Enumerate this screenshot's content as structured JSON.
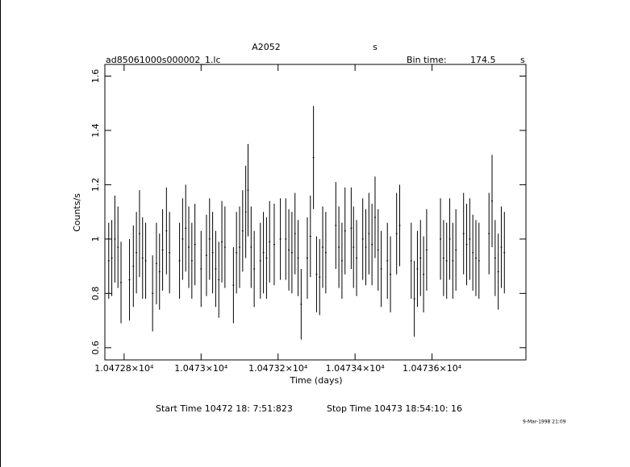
{
  "chart_data": {
    "type": "errorbar",
    "title": "A2052",
    "title_unit": "s",
    "file": "ad85061000s000002_1.lc",
    "bin_label": "Bin time:",
    "bin_time": 174.5,
    "bin_unit": "s",
    "ylabel": "Counts/s",
    "xlabel": "Time (days)",
    "start_time": "Start Time 10472 18: 7:51:823",
    "stop_time": "Stop Time 10473 18:54:10: 16",
    "date": "9-Mar-1998 21:09",
    "color": "#000000",
    "xlim": [
      10472.75,
      10473.844
    ],
    "ylim": [
      0.555,
      1.643
    ],
    "xticks": [
      {
        "value": 10472.8,
        "label": "1.04728×10⁴"
      },
      {
        "value": 10473.0,
        "label": "1.0473×10⁴"
      },
      {
        "value": 10473.2,
        "label": "1.04732×10⁴"
      },
      {
        "value": 10473.4,
        "label": "1.04734×10⁴"
      },
      {
        "value": 10473.6,
        "label": "1.04736×10⁴"
      }
    ],
    "yticks": [
      0.6,
      0.8,
      1,
      1.2,
      1.4,
      1.6
    ],
    "x": [
      10472.76,
      10472.768,
      10472.776,
      10472.784,
      10472.792,
      10472.814,
      10472.824,
      10472.832,
      10472.84,
      10472.848,
      10472.856,
      10472.874,
      10472.884,
      10472.892,
      10472.9,
      10472.91,
      10472.918,
      10472.944,
      10472.952,
      10472.96,
      10472.968,
      10472.976,
      10472.984,
      10473.0,
      10473.014,
      10473.022,
      10473.03,
      10473.038,
      10473.046,
      10473.054,
      10473.062,
      10473.084,
      10473.092,
      10473.1,
      10473.108,
      10473.116,
      10473.122,
      10473.13,
      10473.138,
      10473.154,
      10473.162,
      10473.17,
      10473.178,
      10473.19,
      10473.206,
      10473.22,
      10473.228,
      10473.236,
      10473.244,
      10473.252,
      10473.26,
      10473.276,
      10473.284,
      10473.292,
      10473.3,
      10473.308,
      10473.316,
      10473.324,
      10473.35,
      10473.358,
      10473.366,
      10473.374,
      10473.39,
      10473.396,
      10473.404,
      10473.42,
      10473.428,
      10473.436,
      10473.444,
      10473.452,
      10473.46,
      10473.468,
      10473.484,
      10473.492,
      10473.508,
      10473.516,
      10473.546,
      10473.554,
      10473.562,
      10473.57,
      10473.578,
      10473.586,
      10473.622,
      10473.63,
      10473.638,
      10473.646,
      10473.654,
      10473.662,
      10473.682,
      10473.69,
      10473.698,
      10473.706,
      10473.714,
      10473.722,
      10473.748,
      10473.756,
      10473.764,
      10473.772,
      10473.78,
      10473.788
    ],
    "values": [
      0.92,
      0.93,
      1.0,
      0.97,
      0.84,
      0.85,
      0.9,
      0.95,
      1.02,
      0.93,
      0.92,
      0.8,
      0.91,
      0.88,
      0.96,
      1.03,
      0.95,
      0.92,
      1.0,
      1.04,
      0.97,
      0.92,
      0.98,
      0.89,
      0.94,
      1.0,
      0.95,
      0.89,
      0.85,
      0.99,
      0.97,
      0.83,
      0.95,
      0.97,
      1.03,
      1.1,
      1.18,
      0.97,
      0.89,
      0.92,
      0.95,
      0.93,
      0.99,
      0.98,
      1.0,
      1.0,
      0.96,
      0.95,
      1.02,
      0.93,
      0.76,
      0.93,
      1.01,
      1.3,
      0.87,
      0.86,
      0.97,
      0.95,
      1.05,
      0.97,
      0.92,
      1.03,
      1.04,
      0.97,
      0.93,
      1.0,
      0.97,
      1.02,
      0.98,
      1.08,
      0.96,
      0.89,
      0.92,
      0.87,
      1.02,
      1.05,
      0.92,
      0.78,
      0.89,
      0.93,
      0.87,
      0.96,
      1.0,
      0.93,
      0.92,
      1.0,
      0.92,
      0.96,
      1.02,
      0.98,
      1.0,
      0.95,
      0.93,
      0.92,
      1.02,
      1.14,
      0.93,
      0.88,
      0.97,
      0.95
    ],
    "errors": [
      0.14,
      0.14,
      0.16,
      0.15,
      0.15,
      0.15,
      0.15,
      0.15,
      0.16,
      0.15,
      0.14,
      0.14,
      0.15,
      0.14,
      0.15,
      0.16,
      0.15,
      0.14,
      0.15,
      0.16,
      0.15,
      0.14,
      0.15,
      0.14,
      0.15,
      0.15,
      0.15,
      0.14,
      0.14,
      0.15,
      0.15,
      0.14,
      0.15,
      0.15,
      0.15,
      0.17,
      0.17,
      0.15,
      0.14,
      0.14,
      0.15,
      0.15,
      0.15,
      0.15,
      0.15,
      0.15,
      0.15,
      0.15,
      0.15,
      0.14,
      0.13,
      0.15,
      0.15,
      0.19,
      0.14,
      0.14,
      0.15,
      0.15,
      0.16,
      0.15,
      0.14,
      0.16,
      0.15,
      0.15,
      0.14,
      0.15,
      0.14,
      0.15,
      0.15,
      0.15,
      0.15,
      0.14,
      0.14,
      0.14,
      0.15,
      0.15,
      0.14,
      0.14,
      0.14,
      0.14,
      0.14,
      0.15,
      0.15,
      0.14,
      0.14,
      0.15,
      0.14,
      0.15,
      0.15,
      0.15,
      0.15,
      0.14,
      0.14,
      0.14,
      0.15,
      0.17,
      0.14,
      0.14,
      0.15,
      0.15
    ]
  }
}
